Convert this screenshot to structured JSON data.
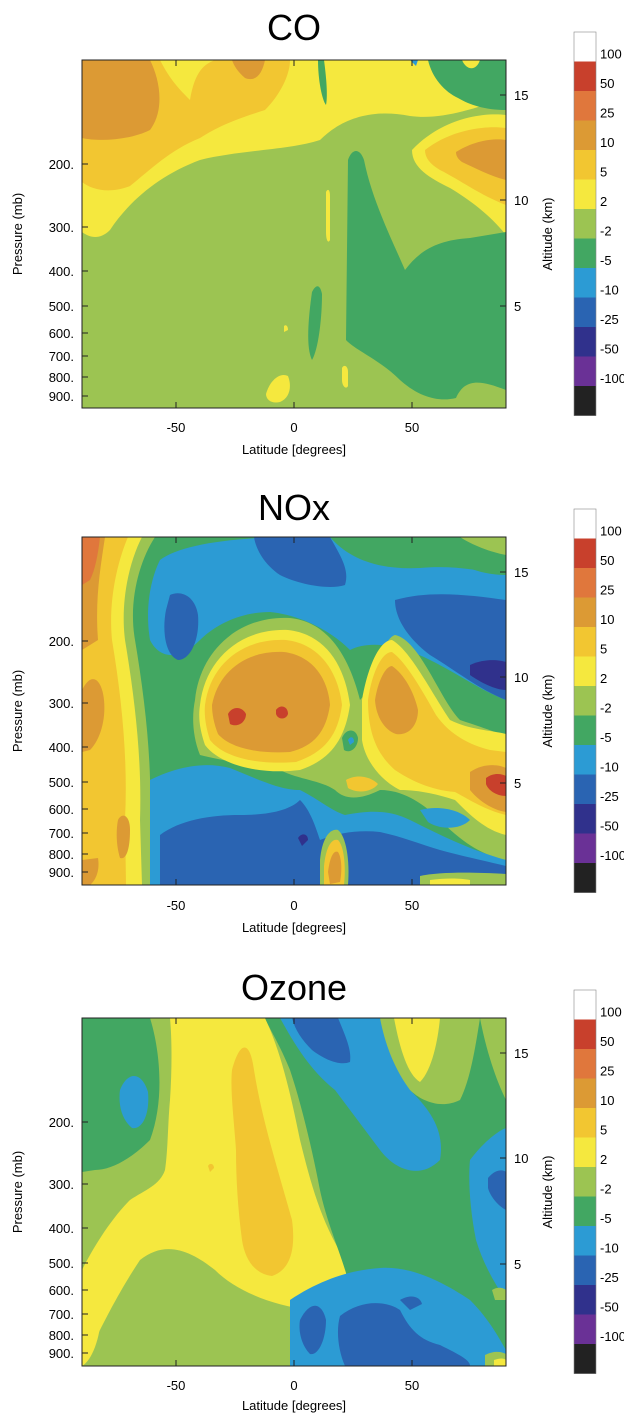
{
  "chart_data": [
    {
      "type": "heatmap",
      "title": "CO",
      "xlabel": "Latitude [degrees]",
      "ylabel": "Pressure (mb)",
      "y2label": "Altitude (km)",
      "xlim": [
        -90,
        90
      ],
      "x_ticks": [
        "-50",
        "0",
        "50"
      ],
      "y_ticks": [
        "200.",
        "300.",
        "400.",
        "500.",
        "600.",
        "700.",
        "800.",
        "900."
      ],
      "y2_ticks": [
        "15",
        "10",
        "5"
      ],
      "legend": [
        "100",
        "50",
        "25",
        "10",
        "5",
        "2",
        "-2",
        "-5",
        "-10",
        "-25",
        "-50",
        "-100"
      ],
      "legend_placement": "right"
    },
    {
      "type": "heatmap",
      "title": "NOx",
      "xlabel": "Latitude [degrees]",
      "ylabel": "Pressure (mb)",
      "y2label": "Altitude (km)",
      "xlim": [
        -90,
        90
      ],
      "x_ticks": [
        "-50",
        "0",
        "50"
      ],
      "y_ticks": [
        "200.",
        "300.",
        "400.",
        "500.",
        "600.",
        "700.",
        "800.",
        "900."
      ],
      "y2_ticks": [
        "15",
        "10",
        "5"
      ],
      "legend": [
        "100",
        "50",
        "25",
        "10",
        "5",
        "2",
        "-2",
        "-5",
        "-10",
        "-25",
        "-50",
        "-100"
      ],
      "legend_placement": "right"
    },
    {
      "type": "heatmap",
      "title": "Ozone",
      "xlabel": "Latitude [degrees]",
      "ylabel": "Pressure (mb)",
      "y2label": "Altitude (km)",
      "xlim": [
        -90,
        90
      ],
      "x_ticks": [
        "-50",
        "0",
        "50"
      ],
      "y_ticks": [
        "200.",
        "300.",
        "400.",
        "500.",
        "600.",
        "700.",
        "800.",
        "900."
      ],
      "y2_ticks": [
        "15",
        "10",
        "5"
      ],
      "legend": [
        "100",
        "50",
        "25",
        "10",
        "5",
        "2",
        "-2",
        "-5",
        "-10",
        "-25",
        "-50",
        "-100"
      ],
      "legend_placement": "right"
    }
  ],
  "colors": {
    "above_100": "#ffffff",
    "c50_100": "#c8402c",
    "c25_50": "#e0773c",
    "c10_25": "#dc9a34",
    "c5_10": "#f2c631",
    "c2_5": "#f5e83e",
    "cm2_2": "#9cc452",
    "cm5_m2": "#42a762",
    "cm10_m5": "#2c9bd4",
    "cm25_m10": "#2a64b2",
    "cm50_m25": "#30318c",
    "cm100_m50": "#6a3196",
    "below_m100": "#222222"
  }
}
